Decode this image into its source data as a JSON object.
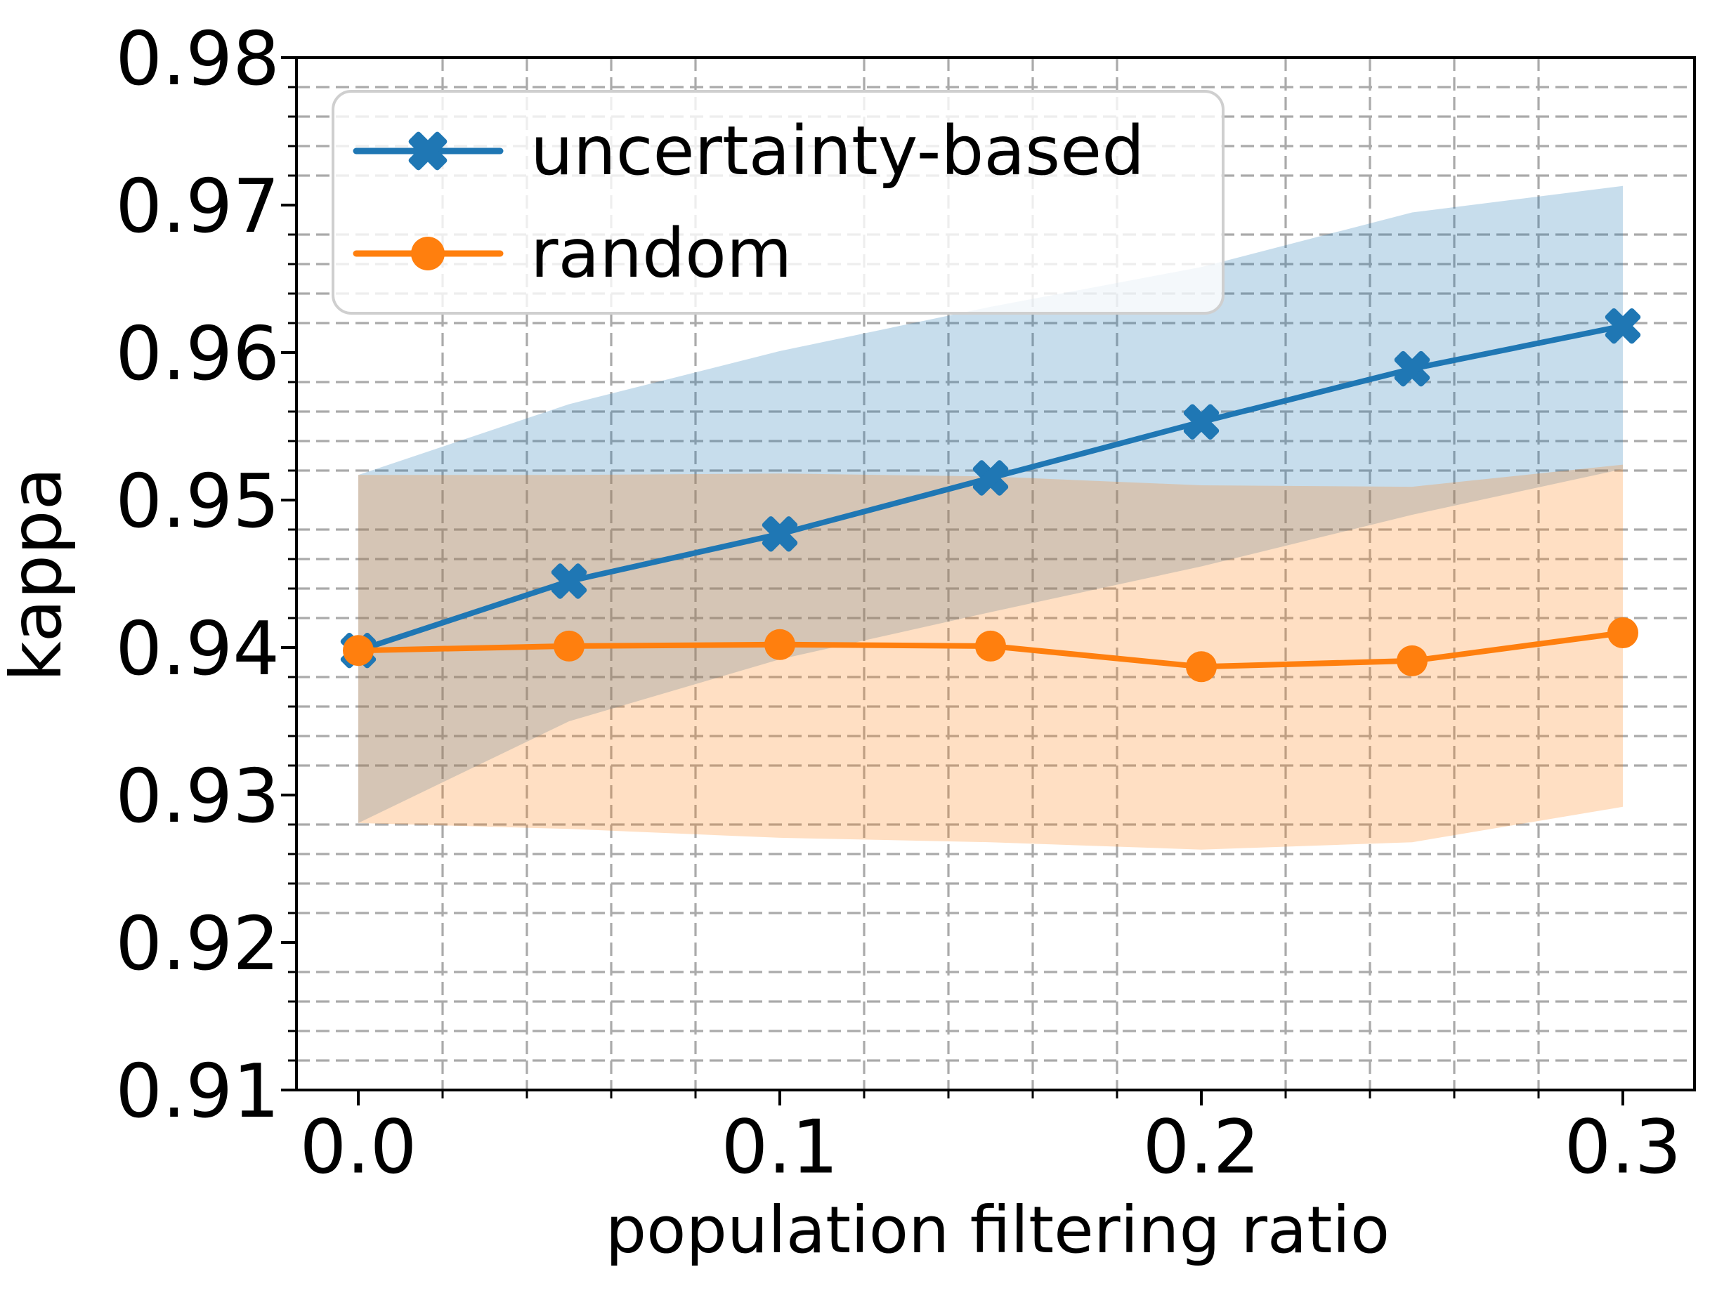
{
  "chart_data": {
    "type": "line",
    "title": "",
    "xlabel": "population filtering ratio",
    "ylabel": "kappa",
    "x": [
      0.0,
      0.05,
      0.1,
      0.15,
      0.2,
      0.25,
      0.3
    ],
    "series": [
      {
        "name": "uncertainty-based",
        "color": "#1f77b4",
        "marker": "X",
        "values": [
          0.9398,
          0.9445,
          0.9477,
          0.9515,
          0.9553,
          0.9589,
          0.9618
        ],
        "band_upper": [
          0.9517,
          0.9565,
          0.9601,
          0.9631,
          0.9658,
          0.9695,
          0.9713
        ],
        "band_lower": [
          0.9281,
          0.935,
          0.9392,
          0.9424,
          0.9455,
          0.949,
          0.9521
        ]
      },
      {
        "name": "random",
        "color": "#ff7f0e",
        "marker": "o",
        "values": [
          0.9398,
          0.9401,
          0.9402,
          0.9401,
          0.9387,
          0.9391,
          0.941
        ],
        "band_upper": [
          0.9517,
          0.9517,
          0.9518,
          0.9516,
          0.951,
          0.9509,
          0.9524
        ],
        "band_lower": [
          0.9281,
          0.9277,
          0.9271,
          0.9268,
          0.9263,
          0.9268,
          0.9292
        ]
      }
    ],
    "band_alpha": 0.25,
    "xlim": [
      -0.014667,
      0.317
    ],
    "ylim": [
      0.91,
      0.98
    ],
    "xticks": {
      "major": [
        0.0,
        0.1,
        0.2,
        0.3
      ],
      "labels": [
        "0.0",
        "0.1",
        "0.2",
        "0.3"
      ],
      "minor_step": 0.02
    },
    "yticks": {
      "major": [
        0.91,
        0.92,
        0.93,
        0.94,
        0.95,
        0.96,
        0.97,
        0.98
      ],
      "labels": [
        "0.91",
        "0.92",
        "0.93",
        "0.94",
        "0.95",
        "0.96",
        "0.97",
        "0.98"
      ],
      "minor_step": 0.002
    },
    "grid": {
      "which": "minor",
      "style": "dashed",
      "color": "#aaaaaa"
    },
    "legend": {
      "position": "upper left"
    },
    "spine_color": "#000000"
  }
}
